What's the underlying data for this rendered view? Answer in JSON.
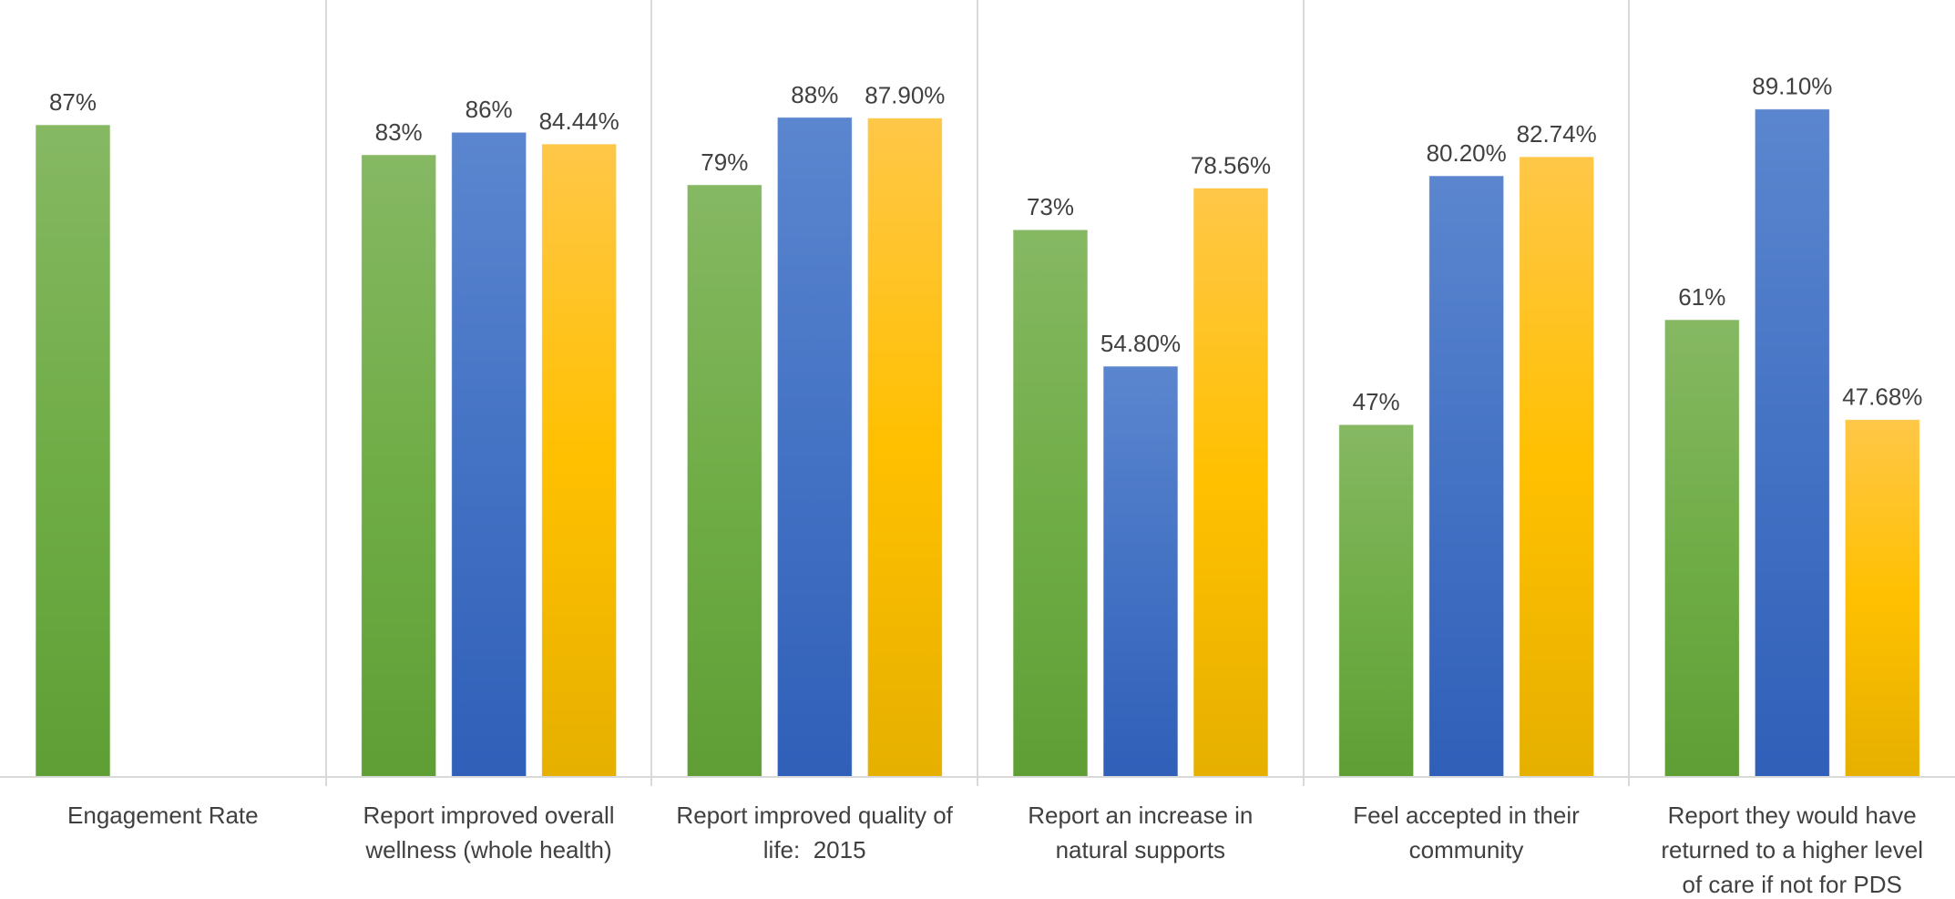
{
  "chart_data": {
    "type": "bar",
    "title": "",
    "xlabel": "",
    "ylabel": "",
    "ylim": [
      0,
      100
    ],
    "grid": false,
    "legend": "none",
    "categories": [
      "Engagement Rate",
      "Report improved overall wellness (whole health)",
      "Report improved quality of life:  2015",
      "Report an increase in natural supports",
      "Feel accepted in their community",
      "Report they would have returned to a higher level of care if not for PDS"
    ],
    "category_lines": [
      [
        "Engagement Rate"
      ],
      [
        "Report improved overall",
        "wellness (whole health)"
      ],
      [
        "Report improved quality of",
        "life:  2015"
      ],
      [
        "Report an increase in",
        "natural supports"
      ],
      [
        "Feel accepted in their",
        "community"
      ],
      [
        "Report they would have",
        "returned to a higher level",
        "of care if not for PDS"
      ]
    ],
    "series": [
      {
        "color": "#70ad47",
        "values": [
          87,
          83,
          79,
          73,
          47,
          61
        ],
        "labels": [
          "87%",
          "83%",
          "79%",
          "73%",
          "47%",
          "61%"
        ]
      },
      {
        "color": "#4472c4",
        "values": [
          null,
          86,
          88,
          54.8,
          80.2,
          89.1
        ],
        "labels": [
          null,
          "86%",
          "88%",
          "54.80%",
          "80.20%",
          "89.10%"
        ]
      },
      {
        "color": "#ffc000",
        "values": [
          null,
          84.44,
          87.9,
          78.56,
          82.74,
          47.68
        ],
        "labels": [
          null,
          "84.44%",
          "87.90%",
          "78.56%",
          "82.74%",
          "47.68%"
        ]
      }
    ]
  }
}
